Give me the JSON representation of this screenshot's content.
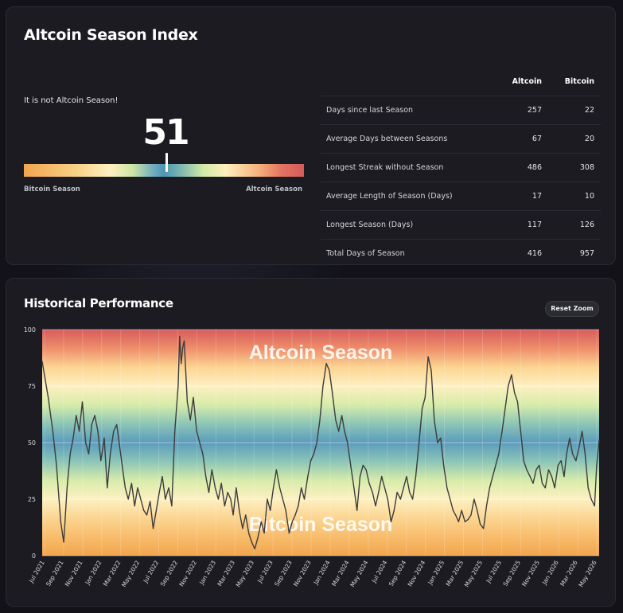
{
  "header": {
    "title": "Altcoin Season Index"
  },
  "index": {
    "status": "It is not Altcoin Season!",
    "value": "51",
    "value_num": 51,
    "left_label": "Bitcoin Season",
    "right_label": "Altcoin Season"
  },
  "stats_table": {
    "columns": [
      "Altcoin",
      "Bitcoin"
    ],
    "rows": [
      {
        "label": "Days since last Season",
        "altcoin": "257",
        "bitcoin": "22"
      },
      {
        "label": "Average Days between Seasons",
        "altcoin": "67",
        "bitcoin": "20"
      },
      {
        "label": "Longest Streak without Season",
        "altcoin": "486",
        "bitcoin": "308"
      },
      {
        "label": "Average Length of Season (Days)",
        "altcoin": "17",
        "bitcoin": "10"
      },
      {
        "label": "Longest Season (Days)",
        "altcoin": "117",
        "bitcoin": "126"
      },
      {
        "label": "Total Days of Season",
        "altcoin": "416",
        "bitcoin": "957"
      }
    ]
  },
  "history": {
    "title": "Historical Performance",
    "reset_zoom_label": "Reset Zoom"
  },
  "chart_data": {
    "type": "line",
    "title": "Historical Performance",
    "ylim": [
      0,
      100
    ],
    "y_ticks": [
      "0",
      "25",
      "50",
      "75",
      "100"
    ],
    "x_tick_labels": [
      "Jul 2021",
      "Sep 2021",
      "Nov 2021",
      "Jan 2022",
      "Mar 2022",
      "May 2022",
      "Jul 2022",
      "Sep 2022",
      "Nov 2022",
      "Jan 2023",
      "Mar 2023",
      "May 2023",
      "Jul 2023",
      "Sep 2023",
      "Nov 2023",
      "Jan 2024",
      "Mar 2024",
      "May 2024",
      "Jul 2024",
      "Sep 2024",
      "Nov 2024",
      "Jan 2025",
      "Mar 2025",
      "May 2025",
      "Jul 2025",
      "Sep 2025",
      "Nov 2025",
      "Jan 2026",
      "Mar 2026",
      "May 2026"
    ],
    "x_range": [
      "2021-06-15",
      "2026-06-20"
    ],
    "background_zones": [
      "Altcoin Season",
      "Bitcoin Season"
    ],
    "zone_colors": [
      "#d65d5d",
      "#ef8e6a",
      "#fbd592",
      "#fdf0c0",
      "#d7ecaa",
      "#8cc5b7",
      "#5b9cbc",
      "#8cc5b7",
      "#d7ecaa",
      "#fdf0c0",
      "#fbd592",
      "#f8bc6c",
      "#f2a54e"
    ],
    "line_color": "#3c3c3c",
    "grid": true,
    "series": [
      {
        "points": [
          [
            "2021-06-15",
            86
          ],
          [
            "2021-07-05",
            70
          ],
          [
            "2021-07-20",
            55
          ],
          [
            "2021-08-01",
            40
          ],
          [
            "2021-08-15",
            15
          ],
          [
            "2021-08-25",
            6
          ],
          [
            "2021-09-05",
            30
          ],
          [
            "2021-09-15",
            45
          ],
          [
            "2021-09-25",
            52
          ],
          [
            "2021-10-05",
            62
          ],
          [
            "2021-10-15",
            55
          ],
          [
            "2021-10-25",
            68
          ],
          [
            "2021-11-05",
            50
          ],
          [
            "2021-11-15",
            45
          ],
          [
            "2021-11-25",
            58
          ],
          [
            "2021-12-05",
            62
          ],
          [
            "2021-12-15",
            55
          ],
          [
            "2021-12-25",
            42
          ],
          [
            "2022-01-05",
            52
          ],
          [
            "2022-01-15",
            30
          ],
          [
            "2022-01-25",
            45
          ],
          [
            "2022-02-05",
            55
          ],
          [
            "2022-02-15",
            58
          ],
          [
            "2022-02-25",
            48
          ],
          [
            "2022-03-05",
            40
          ],
          [
            "2022-03-15",
            30
          ],
          [
            "2022-03-25",
            25
          ],
          [
            "2022-04-05",
            32
          ],
          [
            "2022-04-15",
            22
          ],
          [
            "2022-04-25",
            30
          ],
          [
            "2022-05-05",
            25
          ],
          [
            "2022-05-15",
            20
          ],
          [
            "2022-05-25",
            18
          ],
          [
            "2022-06-05",
            24
          ],
          [
            "2022-06-15",
            12
          ],
          [
            "2022-06-25",
            20
          ],
          [
            "2022-07-05",
            28
          ],
          [
            "2022-07-15",
            35
          ],
          [
            "2022-07-25",
            25
          ],
          [
            "2022-08-05",
            30
          ],
          [
            "2022-08-15",
            22
          ],
          [
            "2022-08-25",
            55
          ],
          [
            "2022-09-05",
            75
          ],
          [
            "2022-09-10",
            97
          ],
          [
            "2022-09-15",
            85
          ],
          [
            "2022-09-20",
            92
          ],
          [
            "2022-09-25",
            95
          ],
          [
            "2022-10-05",
            68
          ],
          [
            "2022-10-15",
            60
          ],
          [
            "2022-10-25",
            70
          ],
          [
            "2022-11-05",
            55
          ],
          [
            "2022-11-15",
            50
          ],
          [
            "2022-11-25",
            45
          ],
          [
            "2022-12-05",
            35
          ],
          [
            "2022-12-15",
            28
          ],
          [
            "2022-12-25",
            38
          ],
          [
            "2023-01-05",
            30
          ],
          [
            "2023-01-15",
            25
          ],
          [
            "2023-01-25",
            32
          ],
          [
            "2023-02-05",
            22
          ],
          [
            "2023-02-15",
            28
          ],
          [
            "2023-02-25",
            25
          ],
          [
            "2023-03-05",
            18
          ],
          [
            "2023-03-15",
            30
          ],
          [
            "2023-03-25",
            20
          ],
          [
            "2023-04-05",
            12
          ],
          [
            "2023-04-15",
            18
          ],
          [
            "2023-04-25",
            10
          ],
          [
            "2023-05-05",
            6
          ],
          [
            "2023-05-15",
            3
          ],
          [
            "2023-05-25",
            8
          ],
          [
            "2023-06-05",
            15
          ],
          [
            "2023-06-15",
            10
          ],
          [
            "2023-06-25",
            25
          ],
          [
            "2023-07-05",
            20
          ],
          [
            "2023-07-15",
            30
          ],
          [
            "2023-07-25",
            38
          ],
          [
            "2023-08-05",
            30
          ],
          [
            "2023-08-15",
            25
          ],
          [
            "2023-08-25",
            20
          ],
          [
            "2023-09-05",
            10
          ],
          [
            "2023-09-15",
            15
          ],
          [
            "2023-09-25",
            18
          ],
          [
            "2023-10-05",
            22
          ],
          [
            "2023-10-15",
            30
          ],
          [
            "2023-10-25",
            25
          ],
          [
            "2023-11-05",
            35
          ],
          [
            "2023-11-15",
            42
          ],
          [
            "2023-11-25",
            45
          ],
          [
            "2023-12-05",
            50
          ],
          [
            "2023-12-15",
            60
          ],
          [
            "2023-12-25",
            75
          ],
          [
            "2024-01-05",
            85
          ],
          [
            "2024-01-15",
            82
          ],
          [
            "2024-01-25",
            72
          ],
          [
            "2024-02-05",
            60
          ],
          [
            "2024-02-15",
            55
          ],
          [
            "2024-02-25",
            62
          ],
          [
            "2024-03-05",
            55
          ],
          [
            "2024-03-15",
            50
          ],
          [
            "2024-03-25",
            40
          ],
          [
            "2024-04-05",
            30
          ],
          [
            "2024-04-15",
            20
          ],
          [
            "2024-04-25",
            35
          ],
          [
            "2024-05-05",
            40
          ],
          [
            "2024-05-15",
            38
          ],
          [
            "2024-05-25",
            32
          ],
          [
            "2024-06-05",
            28
          ],
          [
            "2024-06-15",
            22
          ],
          [
            "2024-06-25",
            28
          ],
          [
            "2024-07-05",
            35
          ],
          [
            "2024-07-15",
            30
          ],
          [
            "2024-07-25",
            25
          ],
          [
            "2024-08-05",
            15
          ],
          [
            "2024-08-15",
            20
          ],
          [
            "2024-08-25",
            28
          ],
          [
            "2024-09-05",
            25
          ],
          [
            "2024-09-15",
            30
          ],
          [
            "2024-09-25",
            35
          ],
          [
            "2024-10-05",
            28
          ],
          [
            "2024-10-15",
            25
          ],
          [
            "2024-10-25",
            35
          ],
          [
            "2024-11-05",
            50
          ],
          [
            "2024-11-15",
            65
          ],
          [
            "2024-11-25",
            70
          ],
          [
            "2024-12-05",
            88
          ],
          [
            "2024-12-15",
            82
          ],
          [
            "2024-12-25",
            60
          ],
          [
            "2025-01-05",
            50
          ],
          [
            "2025-01-15",
            52
          ],
          [
            "2025-01-25",
            40
          ],
          [
            "2025-02-05",
            30
          ],
          [
            "2025-02-15",
            25
          ],
          [
            "2025-02-25",
            20
          ],
          [
            "2025-03-05",
            18
          ],
          [
            "2025-03-15",
            15
          ],
          [
            "2025-03-25",
            20
          ],
          [
            "2025-04-05",
            15
          ],
          [
            "2025-04-15",
            16
          ],
          [
            "2025-04-25",
            18
          ],
          [
            "2025-05-05",
            25
          ],
          [
            "2025-05-15",
            20
          ],
          [
            "2025-05-25",
            14
          ],
          [
            "2025-06-05",
            12
          ],
          [
            "2025-06-15",
            22
          ],
          [
            "2025-06-25",
            30
          ],
          [
            "2025-07-05",
            35
          ],
          [
            "2025-07-15",
            40
          ],
          [
            "2025-07-25",
            45
          ],
          [
            "2025-08-05",
            55
          ],
          [
            "2025-08-15",
            65
          ],
          [
            "2025-08-25",
            75
          ],
          [
            "2025-09-05",
            80
          ],
          [
            "2025-09-15",
            72
          ],
          [
            "2025-09-25",
            68
          ],
          [
            "2025-10-05",
            55
          ],
          [
            "2025-10-15",
            42
          ],
          [
            "2025-10-25",
            38
          ],
          [
            "2025-11-05",
            35
          ],
          [
            "2025-11-15",
            32
          ],
          [
            "2025-11-25",
            38
          ],
          [
            "2025-12-05",
            40
          ],
          [
            "2025-12-15",
            32
          ],
          [
            "2025-12-25",
            30
          ],
          [
            "2026-01-05",
            38
          ],
          [
            "2026-01-15",
            35
          ],
          [
            "2026-01-25",
            30
          ],
          [
            "2026-02-05",
            40
          ],
          [
            "2026-02-15",
            42
          ],
          [
            "2026-02-25",
            35
          ],
          [
            "2026-03-05",
            45
          ],
          [
            "2026-03-15",
            52
          ],
          [
            "2026-03-25",
            45
          ],
          [
            "2026-04-05",
            42
          ],
          [
            "2026-04-15",
            48
          ],
          [
            "2026-04-25",
            55
          ],
          [
            "2026-05-05",
            45
          ],
          [
            "2026-05-15",
            30
          ],
          [
            "2026-05-25",
            25
          ],
          [
            "2026-06-05",
            22
          ],
          [
            "2026-06-12",
            40
          ],
          [
            "2026-06-20",
            51
          ]
        ]
      }
    ]
  }
}
